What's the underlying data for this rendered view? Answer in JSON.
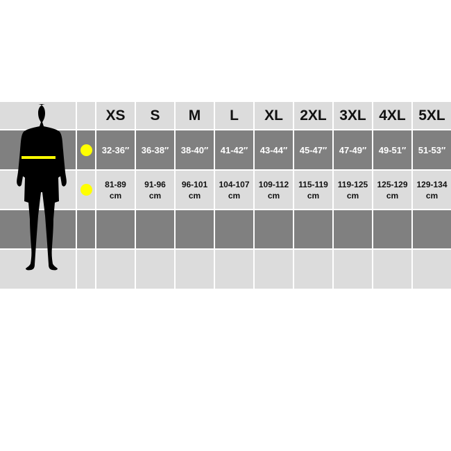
{
  "sizes": [
    "XS",
    "S",
    "M",
    "L",
    "XL",
    "2XL",
    "3XL",
    "4XL",
    "5XL"
  ],
  "inches": [
    "32-36″",
    "36-38″",
    "38-40″",
    "41-42″",
    "43-44″",
    "45-47″",
    "47-49″",
    "49-51″",
    "51-53″"
  ],
  "cm": [
    "81-89\ncm",
    "91-96\ncm",
    "96-101\ncm",
    "104-107\ncm",
    "109-112\ncm",
    "115-119\ncm",
    "119-125\ncm",
    "125-129\ncm",
    "129-134\ncm"
  ],
  "colors": {
    "light": "#dcdcdc",
    "dark": "#808080",
    "marker": "#ffff00",
    "silhouette": "#000000"
  },
  "icons": [
    "person-silhouette-icon",
    "chest-measure-line",
    "yellow-dot-icon"
  ]
}
